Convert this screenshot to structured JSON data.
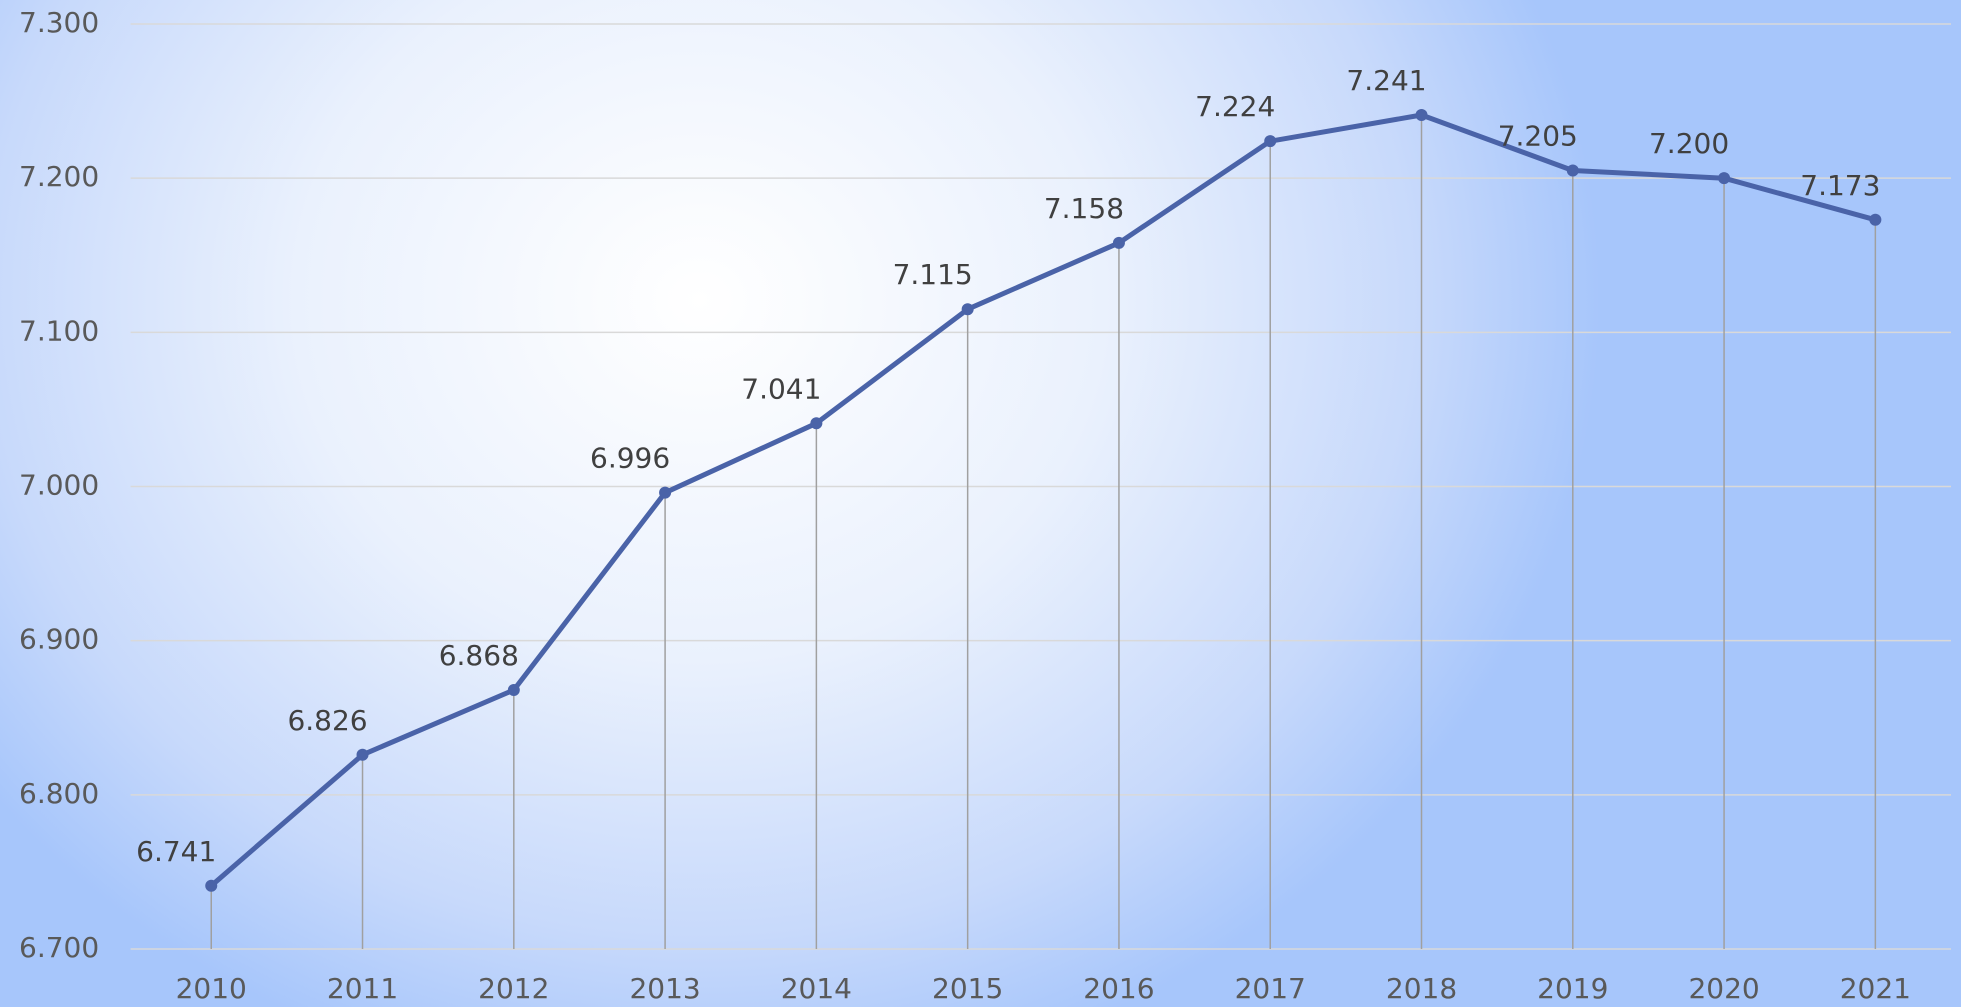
{
  "chart_data": {
    "type": "line",
    "categories": [
      "2010",
      "2011",
      "2012",
      "2013",
      "2014",
      "2015",
      "2016",
      "2017",
      "2018",
      "2019",
      "2020",
      "2021"
    ],
    "values": [
      6.741,
      6.826,
      6.868,
      6.996,
      7.041,
      7.115,
      7.158,
      7.224,
      7.241,
      7.205,
      7.2,
      7.173
    ],
    "value_labels": [
      "6.741",
      "6.826",
      "6.868",
      "6.996",
      "7.041",
      "7.115",
      "7.158",
      "7.224",
      "7.241",
      "7.205",
      "7.200",
      "7.173"
    ],
    "color": "#4a63a8",
    "ylim": [
      6.7,
      7.3
    ],
    "yticks": [
      {
        "value": 6.7,
        "label": "6.700"
      },
      {
        "value": 6.8,
        "label": "6.800"
      },
      {
        "value": 6.9,
        "label": "6.900"
      },
      {
        "value": 7.0,
        "label": "7.000"
      },
      {
        "value": 7.1,
        "label": "7.100"
      },
      {
        "value": 7.2,
        "label": "7.200"
      },
      {
        "value": 7.3,
        "label": "7.300"
      }
    ],
    "grid": true
  }
}
